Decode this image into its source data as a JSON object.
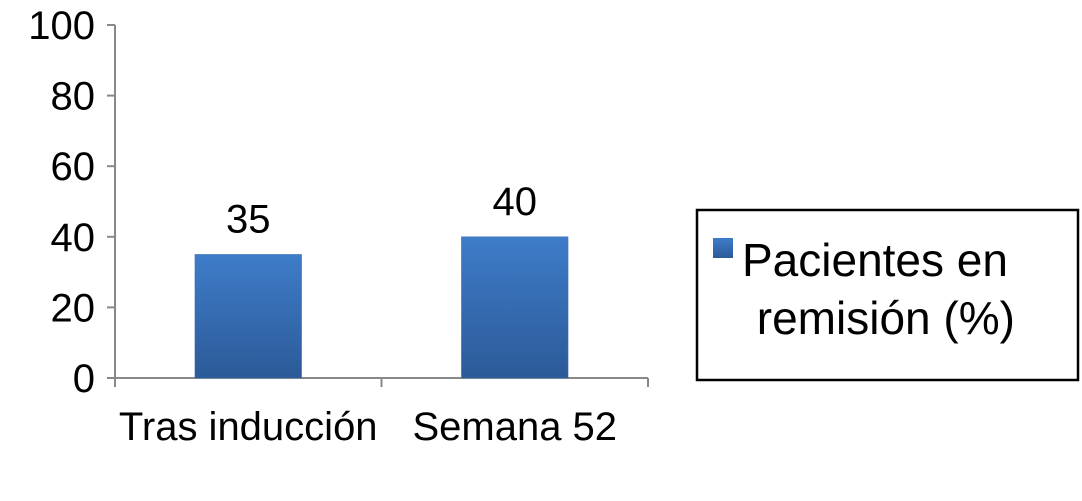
{
  "chart_data": {
    "type": "bar",
    "categories": [
      "Tras inducción",
      "Semana 52"
    ],
    "series": [
      {
        "name": "Pacientes en remisión (%)",
        "color": "#3a6fb8",
        "values": [
          35,
          40
        ]
      }
    ],
    "ylim": [
      0,
      100
    ],
    "yticks": [
      0,
      20,
      40,
      60,
      80,
      100
    ],
    "grid": false,
    "legend": "right"
  }
}
